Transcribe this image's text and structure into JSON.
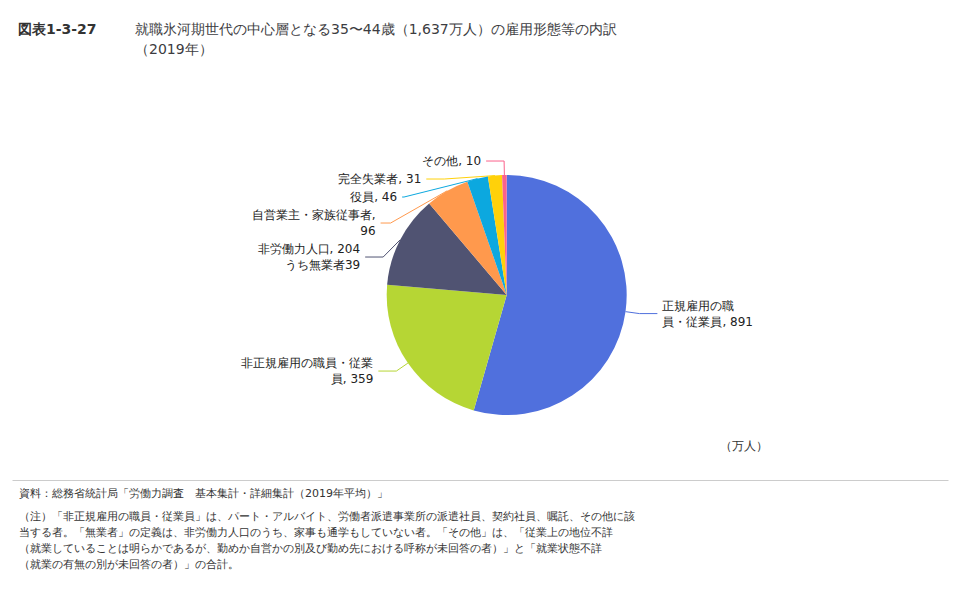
{
  "chart_data": {
    "type": "pie",
    "title": "就職氷河期世代の中心層となる35〜44歳（1,637万人）の雇用形態等の内訳\n（2019年）",
    "categories": [
      "正規雇用の職\n員・従業員",
      "非正規雇用の職員・従業\n員",
      "非労働力人口",
      "自営業主・家族従事者",
      "役員",
      "完全失業者",
      "その他"
    ],
    "values": [
      891,
      359,
      204,
      96,
      46,
      31,
      10
    ],
    "value_labels": [
      "正規雇用の職\n員・従業員, 891",
      "非正規雇用の職員・従業\n員, 359",
      "非労働力人口, 204\nうち無業者39",
      "自営業主・家族従事者,\n96",
      "役員, 46",
      "完全失業者, 31",
      "その他, 10"
    ],
    "data_labels": true,
    "annotations": [
      "図表1-3-27",
      "（万人）",
      "資料：総務省統計局「労働力調査　基本集計・詳細集計（2019年平均）」",
      "（注）「非正規雇用の職員・従業員」は、パート・アルバイト、労働者派遣事業所の派遣社員、契約社員、嘱託、その他に該\n当する者。「無業者」の定義は、非労働力人口のうち、家事も通学もしていない者。「その他」は、「従業上の地位不詳\n（就業していることは明らかであるが、勤めか自営かの別及び勤め先における呼称が未回答の者）」と「就業状態不詳\n（就業の有無の別が未回答の者）」の合計。"
    ]
  }
}
